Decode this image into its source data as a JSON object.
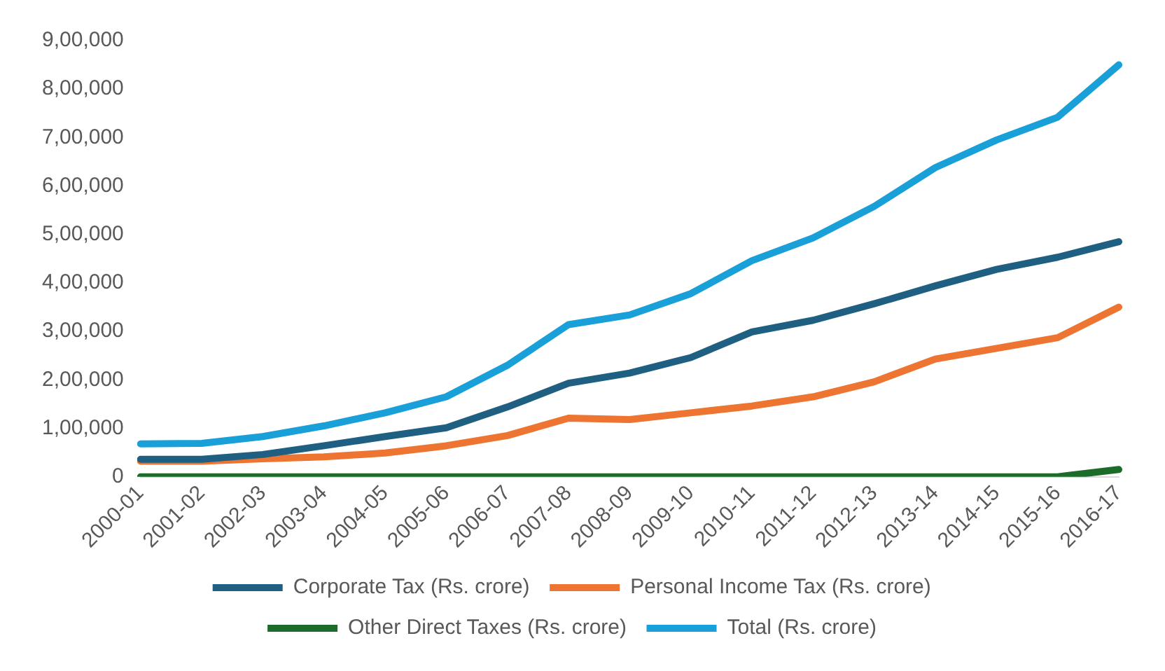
{
  "chart_data": {
    "type": "line",
    "categories": [
      "2000-01",
      "2001-02",
      "2002-03",
      "2003-04",
      "2004-05",
      "2005-06",
      "2006-07",
      "2007-08",
      "2008-09",
      "2009-10",
      "2010-11",
      "2011-12",
      "2012-13",
      "2013-14",
      "2014-15",
      "2015-16",
      "2016-17"
    ],
    "series": [
      {
        "name": "Corporate Tax (Rs. crore)",
        "color": "#1f5f82",
        "values": [
          36000,
          36000,
          46000,
          64000,
          83000,
          101000,
          144000,
          193000,
          214000,
          246000,
          299000,
          323000,
          357000,
          394000,
          428000,
          453000,
          485000
        ]
      },
      {
        "name": "Personal Income Tax (Rs. crore)",
        "color": "#ed7431",
        "values": [
          32000,
          32000,
          37000,
          41000,
          49000,
          64000,
          85000,
          121000,
          118000,
          132000,
          146000,
          165000,
          196000,
          243000,
          265000,
          287000,
          350000
        ]
      },
      {
        "name": "Other Direct Taxes (Rs. crore)",
        "color": "#1d6b2a",
        "values": [
          0,
          0,
          0,
          0,
          0,
          0,
          0,
          0,
          0,
          0,
          0,
          0,
          0,
          0,
          0,
          0,
          15000
        ]
      },
      {
        "name": "Total (Rs. crore)",
        "color": "#1aa0d8",
        "values": [
          68000,
          69000,
          83000,
          105000,
          132000,
          165000,
          230000,
          314000,
          334000,
          378000,
          446000,
          493000,
          558000,
          638000,
          695000,
          742000,
          850000
        ]
      }
    ],
    "ylim": [
      0,
      900000
    ],
    "yticks": [
      0,
      {
        "value": 100000,
        "label": "1,00,000"
      },
      {
        "value": 200000,
        "label": "2,00,000"
      },
      {
        "value": 300000,
        "label": "3,00,000"
      },
      {
        "value": 400000,
        "label": "4,00,000"
      },
      {
        "value": 500000,
        "label": "5,00,000"
      },
      {
        "value": 600000,
        "label": "6,00,000"
      },
      {
        "value": 700000,
        "label": "7,00,000"
      },
      {
        "value": 800000,
        "label": "8,00,000"
      },
      {
        "value": 900000,
        "label": "9,00,000"
      }
    ],
    "grid": false,
    "legend": "bottom",
    "marker": "none",
    "line_style": "solid"
  }
}
